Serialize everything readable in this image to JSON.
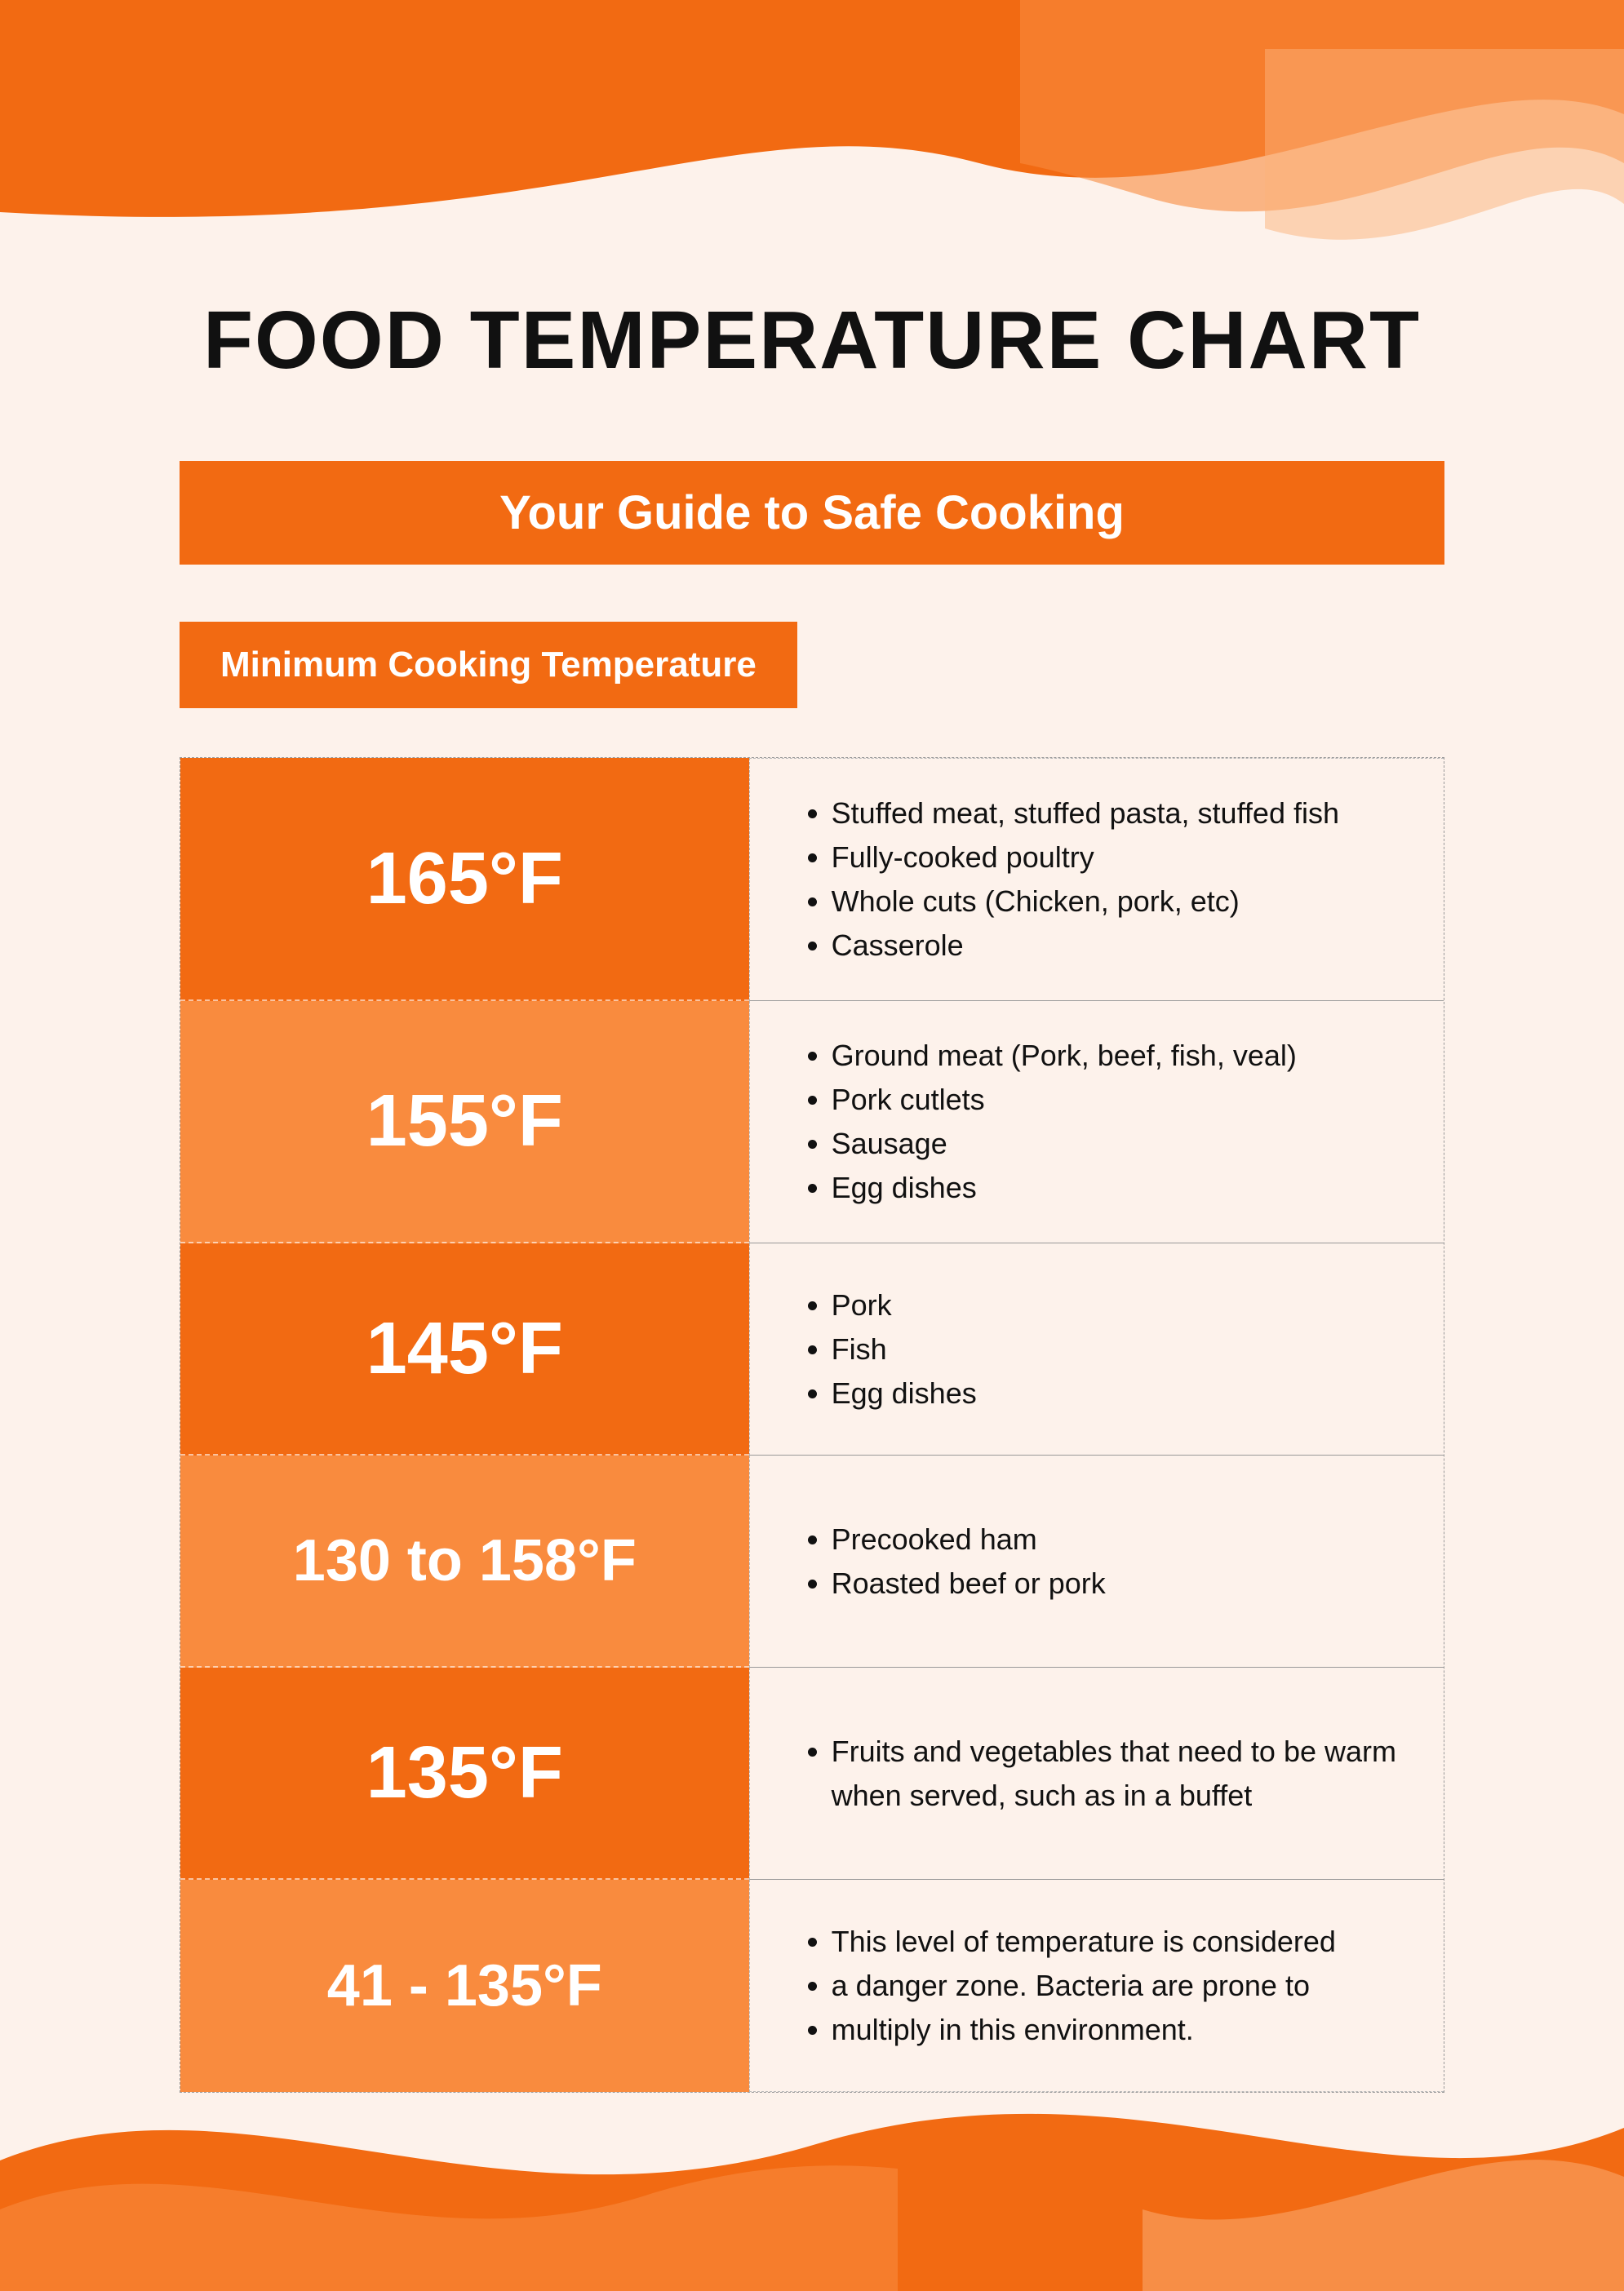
{
  "colors": {
    "page_bg": "#fdf2eb",
    "orange_dark": "#f26a12",
    "orange_mid": "#f98b3e",
    "orange_light": "#fbb27a",
    "text": "#111111",
    "white": "#ffffff",
    "border_gray": "#999999",
    "border_dash": "#bbbbbb"
  },
  "header": {
    "title": "FOOD TEMPERATURE CHART",
    "subtitle": "Your Guide to Safe Cooking",
    "section_label": "Minimum Cooking Temperature",
    "title_fontsize": 100,
    "subtitle_fontsize": 58,
    "section_fontsize": 44
  },
  "chart": {
    "type": "table",
    "temp_col_width_pct": 45,
    "items_col_width_pct": 55,
    "temp_fontsize": 90,
    "temp_fontsize_small": 72,
    "item_fontsize": 36,
    "rows": [
      {
        "temp": "165°F",
        "bg": "#f26a12",
        "items": [
          "Stuffed meat, stuffed pasta, stuffed fish",
          "Fully-cooked poultry",
          "Whole cuts (Chicken, pork, etc)",
          "Casserole"
        ]
      },
      {
        "temp": "155°F",
        "bg": "#f98b3e",
        "items": [
          "Ground meat (Pork, beef, fish, veal)",
          "Pork cutlets",
          "Sausage",
          "Egg dishes"
        ]
      },
      {
        "temp": "145°F",
        "bg": "#f26a12",
        "items": [
          "Pork",
          "Fish",
          "Egg dishes"
        ]
      },
      {
        "temp": "130 to 158°F",
        "bg": "#f98b3e",
        "small": true,
        "items": [
          "Precooked ham",
          "Roasted beef or pork"
        ]
      },
      {
        "temp": "135°F",
        "bg": "#f26a12",
        "items": [
          "Fruits and vegetables that need to be warm when served, such as in a buffet"
        ]
      },
      {
        "temp": "41 - 135°F",
        "bg": "#f98b3e",
        "small": true,
        "items": [
          "This level of temperature is considered",
          "a danger zone. Bacteria are prone to",
          "multiply in this environment."
        ]
      }
    ]
  }
}
